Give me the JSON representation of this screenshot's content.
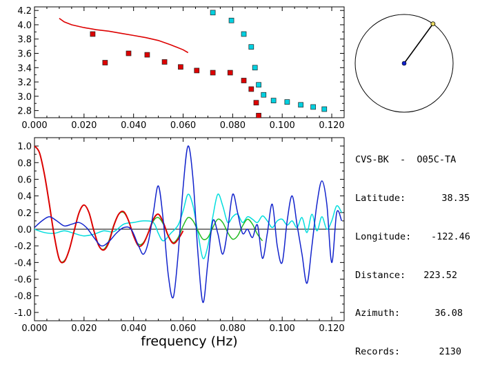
{
  "info": {
    "station": "CVS-BK  -  O05C-TA",
    "rows": [
      {
        "label": "Latitude:",
        "value": "38.35"
      },
      {
        "label": "Longitude:",
        "value": "-122.46"
      },
      {
        "label": "Distance:",
        "value": "223.52"
      },
      {
        "label": "Azimuth:",
        "value": "36.08"
      },
      {
        "label": "Records:",
        "value": "2130"
      }
    ]
  },
  "chart_data": [
    {
      "type": "scatter",
      "title": "",
      "xlabel": "",
      "ylabel": "",
      "xlim": [
        0.0,
        0.125
      ],
      "ylim": [
        2.7,
        4.25
      ],
      "xticks": [
        "0.000",
        "0.020",
        "0.040",
        "0.060",
        "0.080",
        "0.100",
        "0.120"
      ],
      "yticks": [
        "2.8",
        "3.0",
        "3.2",
        "3.4",
        "3.6",
        "3.8",
        "4.0",
        "4.2"
      ],
      "series": [
        {
          "color": "#dd0000",
          "kind": "line",
          "x": [
            0.01,
            0.012,
            0.015,
            0.02,
            0.025,
            0.03,
            0.035,
            0.04,
            0.045,
            0.05,
            0.055,
            0.06,
            0.062
          ],
          "y": [
            4.09,
            4.04,
            4.0,
            3.96,
            3.93,
            3.91,
            3.88,
            3.85,
            3.82,
            3.78,
            3.72,
            3.65,
            3.61
          ]
        },
        {
          "color": "#dd0000",
          "kind": "markers",
          "x": [
            0.0235,
            0.0285,
            0.038,
            0.0455,
            0.0525,
            0.059,
            0.0655,
            0.072,
            0.079,
            0.0845,
            0.0875,
            0.0895,
            0.0905
          ],
          "y": [
            3.87,
            3.47,
            3.6,
            3.58,
            3.48,
            3.41,
            3.36,
            3.33,
            3.33,
            3.22,
            3.1,
            2.91,
            2.73
          ]
        },
        {
          "color": "#00d0e0",
          "kind": "markers",
          "x": [
            0.072,
            0.0795,
            0.0845,
            0.0875,
            0.089,
            0.0905,
            0.0925,
            0.0965,
            0.102,
            0.1075,
            0.1125,
            0.117
          ],
          "y": [
            4.17,
            4.06,
            3.87,
            3.69,
            3.4,
            3.16,
            3.02,
            2.94,
            2.92,
            2.88,
            2.85,
            2.82
          ]
        }
      ]
    },
    {
      "type": "line",
      "title": "",
      "xlabel": "frequency (Hz)",
      "ylabel": "",
      "xlim": [
        0.0,
        0.125
      ],
      "ylim": [
        -1.1,
        1.1
      ],
      "xticks": [
        "0.000",
        "0.020",
        "0.040",
        "0.060",
        "0.080",
        "0.100",
        "0.120"
      ],
      "yticks": [
        "-1.0",
        "-0.8",
        "-0.6",
        "-0.4",
        "-0.2",
        "0.0",
        "0.2",
        "0.4",
        "0.6",
        "0.8",
        "1.0"
      ],
      "series": [
        {
          "color": "#00dddd",
          "x": [
            0.0,
            0.004,
            0.008,
            0.012,
            0.016,
            0.02,
            0.024,
            0.028,
            0.032,
            0.036,
            0.04,
            0.044,
            0.048,
            0.05,
            0.052,
            0.055,
            0.058,
            0.06,
            0.062,
            0.064,
            0.066,
            0.068,
            0.07,
            0.072,
            0.074,
            0.076,
            0.078,
            0.08,
            0.082,
            0.084,
            0.086,
            0.088,
            0.09,
            0.092,
            0.094,
            0.096,
            0.098,
            0.1,
            0.102,
            0.104,
            0.106,
            0.108,
            0.11,
            0.112,
            0.114,
            0.116,
            0.118,
            0.12,
            0.122,
            0.124
          ],
          "y": [
            0.0,
            -0.04,
            -0.05,
            -0.02,
            -0.05,
            -0.08,
            -0.06,
            -0.02,
            -0.03,
            0.06,
            0.08,
            0.1,
            0.08,
            -0.05,
            -0.14,
            -0.05,
            0.05,
            0.22,
            0.42,
            0.28,
            -0.05,
            -0.35,
            -0.2,
            0.15,
            0.42,
            0.28,
            0.08,
            0.15,
            0.18,
            0.08,
            0.15,
            0.12,
            0.08,
            0.16,
            0.1,
            0.02,
            0.1,
            0.12,
            0.05,
            0.1,
            0.02,
            0.14,
            -0.04,
            0.18,
            -0.02,
            0.15,
            0.0,
            0.1,
            0.28,
            0.2
          ]
        },
        {
          "color": "#22bb22",
          "x": [
            0.0,
            0.002,
            0.004,
            0.006,
            0.008,
            0.01,
            0.012,
            0.014,
            0.016,
            0.018,
            0.02,
            0.022,
            0.024,
            0.026,
            0.028,
            0.03,
            0.032,
            0.034,
            0.036,
            0.038,
            0.04,
            0.042,
            0.044,
            0.046,
            0.048,
            0.05,
            0.052,
            0.054,
            0.056,
            0.058,
            0.06,
            0.062,
            0.064,
            0.066,
            0.068,
            0.07,
            0.072,
            0.074,
            0.076,
            0.078,
            0.08,
            0.082,
            0.084,
            0.086,
            0.088,
            0.09,
            0.092
          ],
          "y": [
            1.0,
            0.92,
            0.66,
            0.3,
            -0.08,
            -0.36,
            -0.38,
            -0.25,
            -0.02,
            0.2,
            0.29,
            0.2,
            -0.02,
            -0.2,
            -0.24,
            -0.14,
            0.05,
            0.18,
            0.2,
            0.1,
            -0.08,
            -0.18,
            -0.16,
            -0.04,
            0.1,
            0.14,
            0.06,
            -0.08,
            -0.16,
            -0.1,
            0.04,
            0.14,
            0.1,
            -0.02,
            -0.12,
            -0.1,
            0.02,
            0.12,
            0.08,
            -0.04,
            -0.12,
            -0.08,
            0.04,
            0.12,
            0.06,
            -0.06,
            -0.14
          ]
        },
        {
          "color": "#dd0000",
          "x": [
            0.0,
            0.002,
            0.004,
            0.006,
            0.008,
            0.01,
            0.012,
            0.014,
            0.016,
            0.018,
            0.02,
            0.022,
            0.024,
            0.026,
            0.028,
            0.03,
            0.032,
            0.034,
            0.036,
            0.038,
            0.04,
            0.042,
            0.044,
            0.046,
            0.048,
            0.05,
            0.052,
            0.054,
            0.056,
            0.058,
            0.06
          ],
          "y": [
            1.0,
            0.92,
            0.66,
            0.3,
            -0.08,
            -0.36,
            -0.39,
            -0.25,
            -0.02,
            0.2,
            0.29,
            0.2,
            -0.02,
            -0.2,
            -0.25,
            -0.16,
            0.04,
            0.18,
            0.21,
            0.1,
            -0.08,
            -0.2,
            -0.17,
            -0.04,
            0.12,
            0.18,
            0.08,
            -0.08,
            -0.17,
            -0.12,
            -0.02
          ]
        },
        {
          "color": "#1122cc",
          "x": [
            0.0,
            0.003,
            0.006,
            0.009,
            0.012,
            0.015,
            0.018,
            0.021,
            0.024,
            0.027,
            0.03,
            0.033,
            0.036,
            0.039,
            0.042,
            0.044,
            0.046,
            0.048,
            0.05,
            0.052,
            0.054,
            0.056,
            0.058,
            0.06,
            0.062,
            0.064,
            0.066,
            0.068,
            0.07,
            0.072,
            0.074,
            0.076,
            0.078,
            0.08,
            0.082,
            0.084,
            0.086,
            0.088,
            0.09,
            0.092,
            0.094,
            0.096,
            0.098,
            0.1,
            0.102,
            0.104,
            0.106,
            0.108,
            0.11,
            0.112,
            0.114,
            0.116,
            0.118,
            0.12,
            0.122,
            0.124
          ],
          "y": [
            0.02,
            0.1,
            0.15,
            0.1,
            0.04,
            0.06,
            0.08,
            0.02,
            -0.1,
            -0.2,
            -0.15,
            -0.05,
            0.02,
            0.0,
            -0.2,
            -0.3,
            -0.15,
            0.2,
            0.52,
            0.1,
            -0.55,
            -0.82,
            -0.3,
            0.5,
            1.0,
            0.6,
            -0.3,
            -0.88,
            -0.4,
            0.1,
            -0.05,
            -0.3,
            0.0,
            0.42,
            0.2,
            -0.05,
            0.0,
            -0.1,
            0.05,
            -0.35,
            -0.05,
            0.3,
            -0.2,
            -0.4,
            0.1,
            0.4,
            0.05,
            -0.3,
            -0.65,
            -0.2,
            0.3,
            0.58,
            0.3,
            -0.4,
            0.2,
            0.1
          ]
        }
      ]
    },
    {
      "type": "scatter",
      "title": "",
      "kind": "azimuth-dial",
      "azimuth_deg": 36.08,
      "series": [
        {
          "name": "",
          "values": [
            36.08
          ]
        }
      ]
    }
  ]
}
